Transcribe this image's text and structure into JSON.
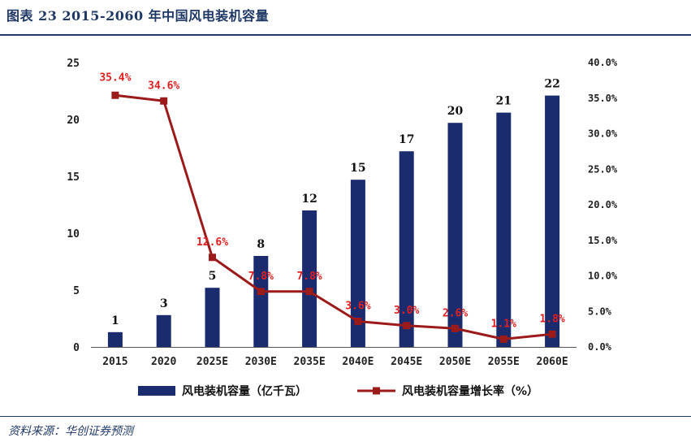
{
  "figure": {
    "title": "图表 23   2015-2060 年中国风电装机容量",
    "source": "资料来源：华创证券预测"
  },
  "colors": {
    "bar": "#1a2b6e",
    "line": "#9b1b1b",
    "label": "#e02020",
    "rule": "#1f3864"
  },
  "chart_data": {
    "type": "bar+line",
    "categories": [
      "2015",
      "2020",
      "2025E",
      "2030E",
      "2035E",
      "2040E",
      "2045E",
      "2050E",
      "2055E",
      "2060E"
    ],
    "series": [
      {
        "name": "风电装机容量（亿千瓦）",
        "type": "bar",
        "axis": "left",
        "values": [
          1.3,
          2.8,
          5.2,
          8.0,
          12.0,
          14.7,
          17.2,
          19.7,
          20.6,
          22.1
        ],
        "labels": [
          "1",
          "3",
          "5",
          "8",
          "12",
          "15",
          "17",
          "20",
          "21",
          "22"
        ]
      },
      {
        "name": "风电装机容量增长率（%）",
        "type": "line",
        "axis": "right",
        "values": [
          35.4,
          34.6,
          12.6,
          7.8,
          7.8,
          3.6,
          3.0,
          2.6,
          1.1,
          1.8
        ],
        "labels": [
          "35.4%",
          "34.6%",
          "12.6%",
          "7.8%",
          "7.8%",
          "3.6%",
          "3.0%",
          "2.6%",
          "1.1%",
          "1.8%"
        ]
      }
    ],
    "y_left": {
      "min": 0,
      "max": 25,
      "ticks": [
        "0",
        "5",
        "10",
        "15",
        "20",
        "25"
      ]
    },
    "y_right": {
      "min": 0,
      "max": 40,
      "ticks": [
        "0.0%",
        "5.0%",
        "10.0%",
        "15.0%",
        "20.0%",
        "25.0%",
        "30.0%",
        "35.0%",
        "40.0%"
      ]
    },
    "legend": "bottom-center"
  }
}
